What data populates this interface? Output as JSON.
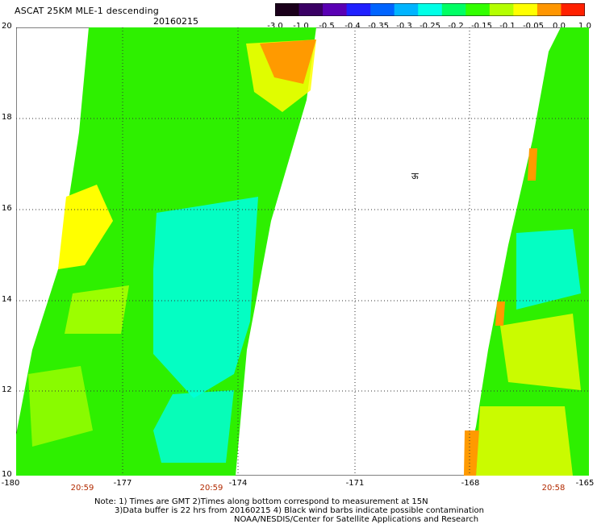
{
  "header": {
    "title": "ASCAT 25KM MLE-1 descending",
    "date": "20160215"
  },
  "colorbar": {
    "labels": [
      "-3.0",
      "-1.0",
      "-0.5",
      "-0.4",
      "-0.35",
      "-0.3",
      "-0.25",
      "-0.2",
      "-0.15",
      "-0.1",
      "-0.05",
      "0.0",
      "1.0"
    ],
    "colors": [
      "#1a001a",
      "#3a0064",
      "#5a00b4",
      "#2020ff",
      "#0064ff",
      "#00b4ff",
      "#00ffe6",
      "#00ff64",
      "#32ff00",
      "#b4ff00",
      "#ffff00",
      "#ff9600",
      "#ff2000"
    ]
  },
  "map": {
    "lat_labels": [
      "20",
      "18",
      "16",
      "14",
      "12",
      "10"
    ],
    "lon_labels": [
      "-180",
      "-177",
      "-174",
      "-171",
      "-168",
      "-165"
    ],
    "time_labels": [
      "20:59",
      "20:59",
      "20:58"
    ],
    "symbol": "ऊ",
    "swath_colors": {
      "main": "#28f000",
      "cyan": "#00ffd8",
      "yellow": "#ffff00",
      "orange": "#ff9a00",
      "greenyellow": "#a8ff00"
    }
  },
  "notes": {
    "line1": "Note: 1) Times are GMT 2)Times along bottom correspond to measurement at 15N",
    "line2": "3)Data buffer is 22 hrs from 20160215 4) Black wind barbs indicate possible contamination",
    "line3": "NOAA/NESDIS/Center for Satellite Applications and Research"
  }
}
